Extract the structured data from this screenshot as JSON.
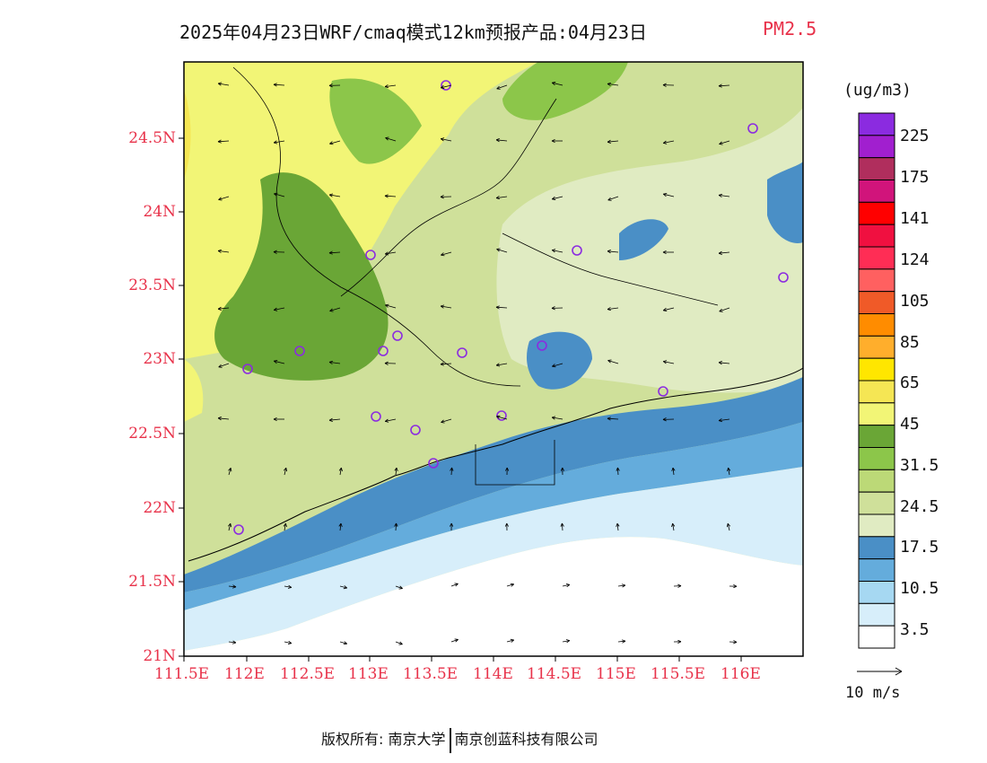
{
  "title": {
    "main": "2025年04月23日WRF/cmaq模式12km预报产品:04月23日",
    "variable": "PM2.5",
    "variable_color": "#e8324a"
  },
  "axes": {
    "lat_labels": [
      "24.5N",
      "24N",
      "23.5N",
      "23N",
      "22.5N",
      "22N",
      "21.5N",
      "21N"
    ],
    "lon_labels": [
      "111.5E",
      "112E",
      "112.5E",
      "113E",
      "113.5E",
      "114E",
      "114.5E",
      "115E",
      "115.5E",
      "116E"
    ],
    "label_color": "#e8324a"
  },
  "legend": {
    "unit": "(ug/m3)",
    "colors": [
      "#8b2be0",
      "#a11fcf",
      "#b02e5d",
      "#d1147b",
      "#ff0000",
      "#f01040",
      "#ff2d55",
      "#ff6060",
      "#f05a28",
      "#ff8c00",
      "#ffae2c",
      "#ffe600",
      "#f5e654",
      "#f2f576",
      "#6aa636",
      "#8cc64a",
      "#bcd977",
      "#cfe09a",
      "#e0ebc2",
      "#4a8fc6",
      "#64acdc",
      "#a6d8f2",
      "#d7eefa",
      "#ffffff"
    ],
    "labels": [
      "225",
      "175",
      "141",
      "124",
      "105",
      "85",
      "65",
      "45",
      "31.5",
      "24.5",
      "17.5",
      "10.5",
      "3.5"
    ]
  },
  "wind_reference": {
    "label": "10 m/s"
  },
  "copyright": {
    "prefix": "版权所有:",
    "org1": "南京大学",
    "org2": "南京创蓝科技有限公司"
  }
}
